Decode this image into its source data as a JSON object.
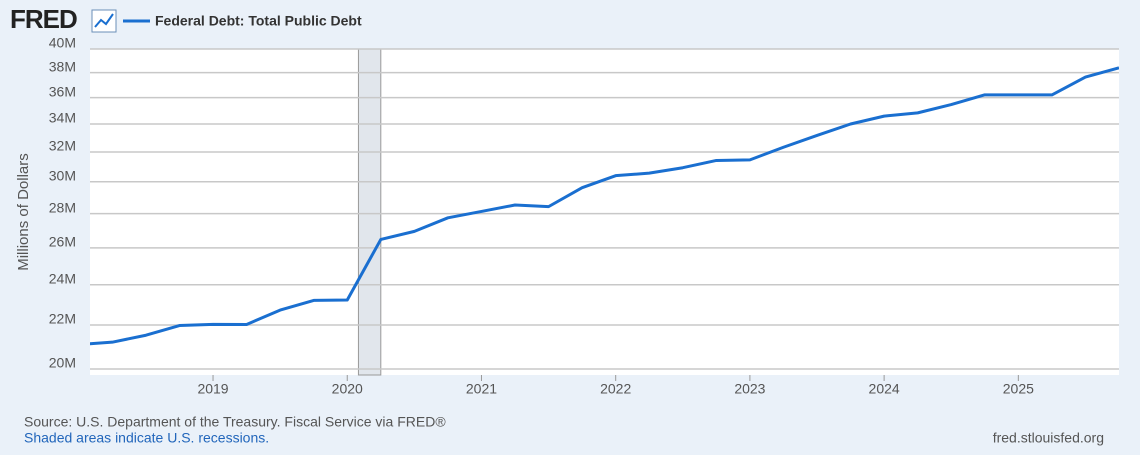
{
  "logo": "FRED",
  "chart_data": {
    "type": "line",
    "series": [
      {
        "name": "Federal Debt: Total Public Debt",
        "color": "#1a6fd0",
        "values": [
          21089643,
          21195070,
          21516058,
          21974096,
          22027880,
          22023283,
          22719402,
          23201380,
          23223813,
          26477335,
          26945391,
          27747798,
          28132570,
          28529436,
          28428919,
          29617215,
          30400960,
          30568582,
          30928912,
          31419689,
          31458438,
          32332274,
          33167334,
          34001494,
          34586533,
          34831634,
          35464674,
          36218605,
          36214310,
          36211469,
          37637553,
          38400000
        ]
      }
    ],
    "x": [
      "2018-01",
      "2018-04",
      "2018-07",
      "2018-10",
      "2019-01",
      "2019-04",
      "2019-07",
      "2019-10",
      "2020-01",
      "2020-04",
      "2020-07",
      "2020-10",
      "2021-01",
      "2021-04",
      "2021-07",
      "2021-10",
      "2022-01",
      "2022-04",
      "2022-07",
      "2022-10",
      "2023-01",
      "2023-04",
      "2023-07",
      "2023-10",
      "2024-01",
      "2024-04",
      "2024-07",
      "2024-10",
      "2025-01",
      "2025-04",
      "2025-07",
      "2025-10"
    ],
    "xlim": [
      "2018-02",
      "2025-10"
    ],
    "xticks": [
      2019,
      2020,
      2021,
      2022,
      2023,
      2024,
      2025
    ],
    "ylabel": "Millions of Dollars",
    "ylim": [
      19740000,
      40000000
    ],
    "log_y": true,
    "yticks": [
      {
        "value": 20000000,
        "label": "20M"
      },
      {
        "value": 22000000,
        "label": "22M"
      },
      {
        "value": 24000000,
        "label": "24M"
      },
      {
        "value": 26000000,
        "label": "26M"
      },
      {
        "value": 28000000,
        "label": "28M"
      },
      {
        "value": 30000000,
        "label": "30M"
      },
      {
        "value": 32000000,
        "label": "32M"
      },
      {
        "value": 34000000,
        "label": "34M"
      },
      {
        "value": 36000000,
        "label": "36M"
      },
      {
        "value": 38000000,
        "label": "38M"
      },
      {
        "value": 40000000,
        "label": "40M"
      }
    ],
    "grid": true,
    "recessions": [
      [
        "2020-02",
        "2020-04"
      ]
    ],
    "source": "Source: U.S. Department of the Treasury. Fiscal Service via FRED®",
    "note": "Shaded areas indicate U.S. recessions.",
    "site": "fred.stlouisfed.org"
  }
}
